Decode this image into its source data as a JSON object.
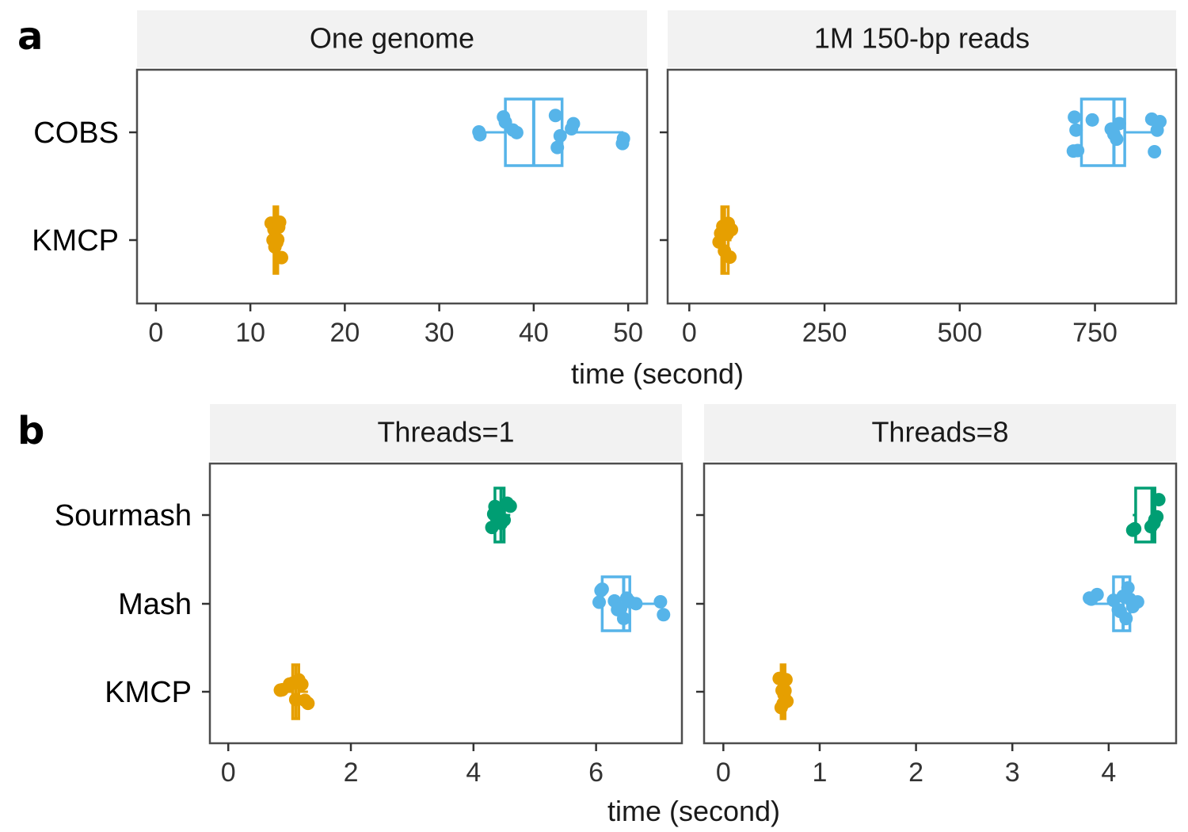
{
  "chart_data": [
    {
      "panel": "a",
      "facet": "One genome",
      "type": "box-jitter",
      "orientation": "horizontal",
      "categories": [
        "COBS",
        "KMCP"
      ],
      "xlabel": "time (second)",
      "xlim": [
        -2,
        52
      ],
      "xticks": [
        0,
        10,
        20,
        30,
        40,
        50
      ],
      "series": [
        {
          "category": "COBS",
          "color": "#56B4E9",
          "box": {
            "min": 34.2,
            "q1": 37.0,
            "median": 40.0,
            "q3": 43.0,
            "max": 49.5
          },
          "points": [
            34.2,
            34.3,
            36.8,
            37.0,
            37.8,
            38.2,
            42.3,
            42.5,
            42.8,
            44.0,
            44.2,
            49.4,
            49.5
          ]
        },
        {
          "category": "KMCP",
          "color": "#E69F00",
          "box": {
            "min": 12.2,
            "q1": 12.5,
            "median": 12.7,
            "q3": 12.9,
            "max": 13.3
          },
          "points": [
            12.2,
            12.4,
            12.5,
            12.6,
            12.7,
            12.8,
            12.9,
            13.0,
            13.1,
            13.3
          ]
        }
      ]
    },
    {
      "panel": "a",
      "facet": "1M 150-bp reads",
      "type": "box-jitter",
      "orientation": "horizontal",
      "categories": [
        "COBS",
        "KMCP"
      ],
      "xlabel": "time (second)",
      "xlim": [
        -40,
        900
      ],
      "xticks": [
        0,
        250,
        500,
        750
      ],
      "series": [
        {
          "category": "COBS",
          "color": "#56B4E9",
          "box": {
            "min": 710,
            "q1": 725,
            "median": 785,
            "q3": 805,
            "max": 870
          },
          "points": [
            710,
            712,
            715,
            718,
            745,
            780,
            785,
            790,
            795,
            855,
            860,
            865,
            870
          ]
        },
        {
          "category": "KMCP",
          "color": "#E69F00",
          "box": {
            "min": 55,
            "q1": 60,
            "median": 65,
            "q3": 72,
            "max": 78
          },
          "points": [
            55,
            58,
            62,
            65,
            68,
            70,
            72,
            75,
            78
          ]
        }
      ]
    },
    {
      "panel": "b",
      "facet": "Threads=1",
      "type": "box-jitter",
      "orientation": "horizontal",
      "categories": [
        "Sourmash",
        "Mash",
        "KMCP"
      ],
      "xlabel": "time (second)",
      "xlim": [
        -0.3,
        7.4
      ],
      "xticks": [
        0,
        2,
        4,
        6
      ],
      "series": [
        {
          "category": "Sourmash",
          "color": "#009E73",
          "box": {
            "min": 4.3,
            "q1": 4.35,
            "median": 4.45,
            "q3": 4.5,
            "max": 4.6
          },
          "points": [
            4.3,
            4.33,
            4.35,
            4.38,
            4.42,
            4.45,
            4.5,
            4.55,
            4.6
          ]
        },
        {
          "category": "Mash",
          "color": "#56B4E9",
          "box": {
            "min": 6.05,
            "q1": 6.1,
            "median": 6.45,
            "q3": 6.55,
            "max": 7.1
          },
          "points": [
            6.05,
            6.08,
            6.1,
            6.3,
            6.35,
            6.4,
            6.45,
            6.5,
            6.55,
            6.65,
            7.05,
            7.1
          ]
        },
        {
          "category": "KMCP",
          "color": "#E69F00",
          "box": {
            "min": 0.85,
            "q1": 1.05,
            "median": 1.1,
            "q3": 1.15,
            "max": 1.3
          },
          "points": [
            0.85,
            0.88,
            1.0,
            1.05,
            1.1,
            1.15,
            1.2,
            1.25,
            1.3
          ]
        }
      ]
    },
    {
      "panel": "b",
      "facet": "Threads=8",
      "type": "box-jitter",
      "orientation": "horizontal",
      "categories": [
        "Sourmash",
        "Mash",
        "KMCP"
      ],
      "xlabel": "time (second)",
      "xlim": [
        -0.2,
        4.7
      ],
      "xticks": [
        0,
        1,
        2,
        3,
        4
      ],
      "series": [
        {
          "category": "Sourmash",
          "color": "#009E73",
          "box": {
            "min": 4.25,
            "q1": 4.28,
            "median": 4.45,
            "q3": 4.48,
            "max": 4.52
          },
          "points": [
            4.25,
            4.27,
            4.44,
            4.47,
            4.48,
            4.5,
            4.52
          ]
        },
        {
          "category": "Mash",
          "color": "#56B4E9",
          "box": {
            "min": 3.8,
            "q1": 4.05,
            "median": 4.15,
            "q3": 4.22,
            "max": 4.3
          },
          "points": [
            3.8,
            3.82,
            3.88,
            4.05,
            4.1,
            4.12,
            4.15,
            4.18,
            4.2,
            4.22,
            4.25,
            4.3
          ]
        },
        {
          "category": "KMCP",
          "color": "#E69F00",
          "box": {
            "min": 0.58,
            "q1": 0.6,
            "median": 0.62,
            "q3": 0.64,
            "max": 0.66
          },
          "points": [
            0.58,
            0.6,
            0.61,
            0.62,
            0.63,
            0.64,
            0.65,
            0.66
          ]
        }
      ]
    }
  ],
  "panel_labels": {
    "a": "a",
    "b": "b"
  }
}
